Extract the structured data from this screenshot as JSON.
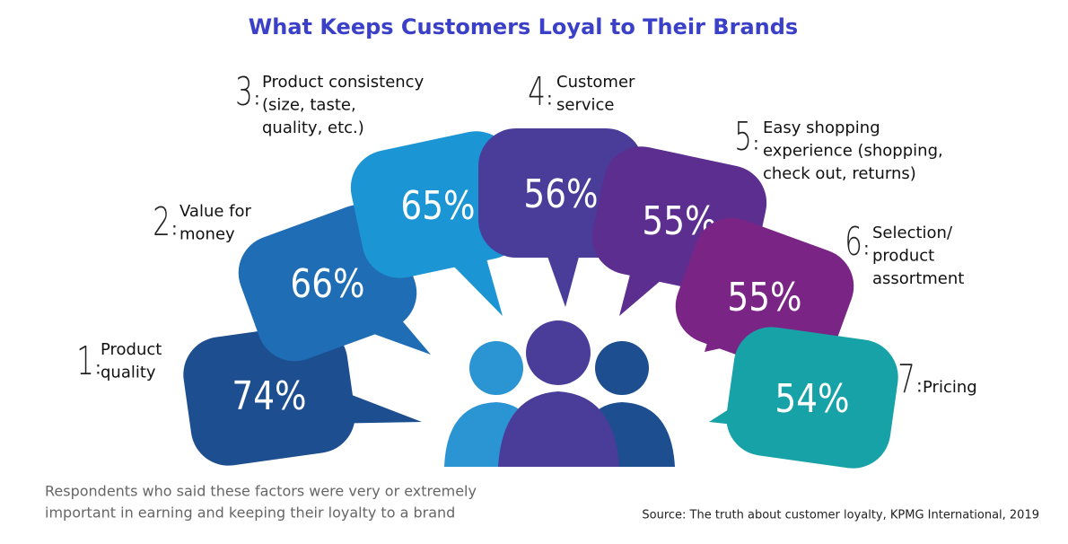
{
  "title": "What Keeps Customers Loyal to Their Brands",
  "items": [
    {
      "rank": "1",
      "label": [
        "Product",
        "quality"
      ],
      "value": "74%",
      "color": "#1d4e8f"
    },
    {
      "rank": "2",
      "label": [
        "Value for",
        "money"
      ],
      "value": "66%",
      "color": "#1f6db5"
    },
    {
      "rank": "3",
      "label": [
        "Product consistency",
        "(size, taste,",
        "quality, etc.)"
      ],
      "value": "65%",
      "color": "#1b95d3"
    },
    {
      "rank": "4",
      "label": [
        "Customer",
        "service"
      ],
      "value": "56%",
      "color": "#4a3d9a"
    },
    {
      "rank": "5",
      "label": [
        "Easy shopping",
        "experience (shopping,",
        "check out, returns)"
      ],
      "value": "55%",
      "color": "#5c2e8f"
    },
    {
      "rank": "6",
      "label": [
        "Selection/",
        "product",
        "assortment"
      ],
      "value": "55%",
      "color": "#7a2585"
    },
    {
      "rank": "7",
      "label": [
        "Pricing"
      ],
      "value": "54%",
      "color": "#17a2a7"
    }
  ],
  "caption": [
    "Respondents who said these factors were very or extremely",
    "important in earning and keeping their loyalty to a brand"
  ],
  "source": "Source: The truth about customer loyalty, KPMG International, 2019"
}
